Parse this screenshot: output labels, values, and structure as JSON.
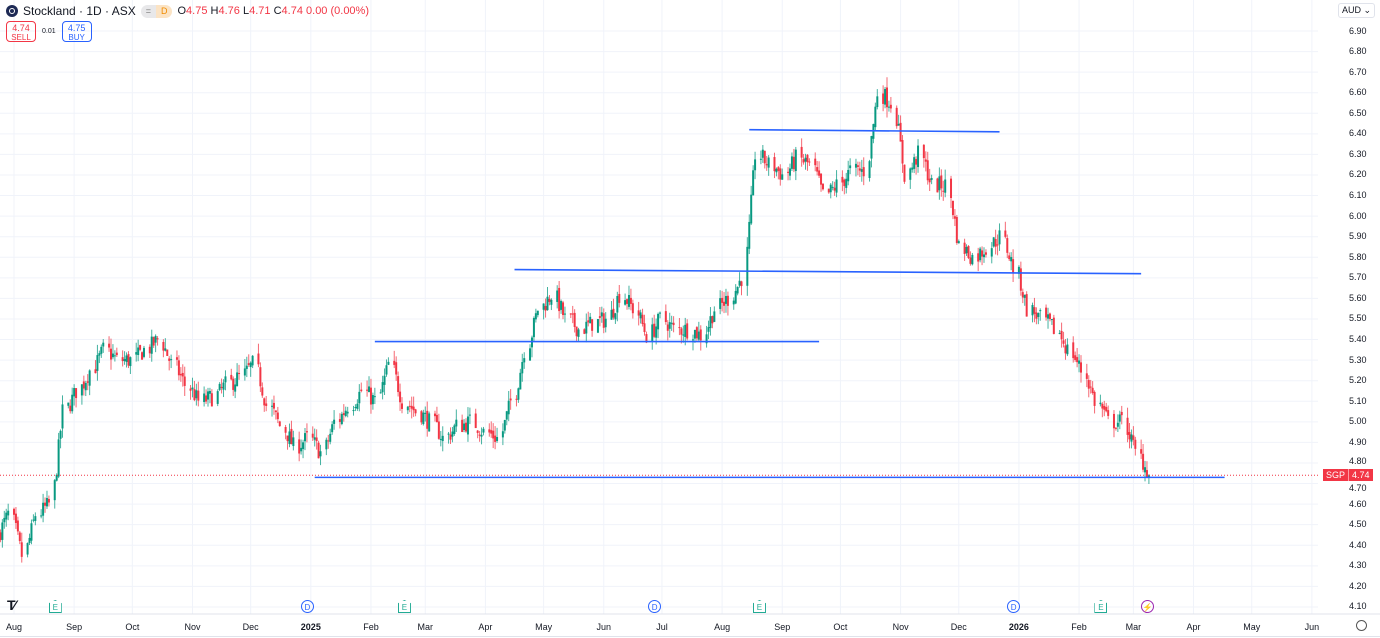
{
  "header": {
    "symbol_title": "Stockland · 1D · ASX",
    "pill_left": "=",
    "pill_right": "D",
    "o_label": "O",
    "o": "4.75",
    "h_label": "H",
    "h": "4.76",
    "l_label": "L",
    "l": "4.71",
    "c_label": "C",
    "c": "4.74",
    "change": "0.00 (0.00%)"
  },
  "trade": {
    "sell_price": "4.74",
    "sell_label": "SELL",
    "spread": "0.01",
    "buy_price": "4.75",
    "buy_label": "BUY"
  },
  "currency": "AUD ⌄",
  "last_price": {
    "symbol": "SGP",
    "value": "4.74"
  },
  "chart_data": {
    "type": "candlestick",
    "interval": "1D",
    "weekly_close_start": "2024-07-25",
    "weekly_closes": [
      4.45,
      4.55,
      4.35,
      4.55,
      4.6,
      5.05,
      5.15,
      5.25,
      5.35,
      5.3,
      5.3,
      5.35,
      5.4,
      5.28,
      5.18,
      5.1,
      5.12,
      5.18,
      5.22,
      5.28,
      5.08,
      4.98,
      4.88,
      4.92,
      4.85,
      5.0,
      5.08,
      5.15,
      5.1,
      5.28,
      5.1,
      5.05,
      5.0,
      4.92,
      4.98,
      5.0,
      4.95,
      4.92,
      5.1,
      5.35,
      5.55,
      5.62,
      5.5,
      5.45,
      5.48,
      5.5,
      5.62,
      5.55,
      5.42,
      5.5,
      5.45,
      5.45,
      5.42,
      5.55,
      5.6,
      5.7,
      6.3,
      6.25,
      6.2,
      6.28,
      6.25,
      6.1,
      6.15,
      6.22,
      6.22,
      6.6,
      6.55,
      6.2,
      6.3,
      6.15,
      6.15,
      5.85,
      5.8,
      5.85,
      5.9,
      5.75,
      5.55,
      5.5,
      5.45,
      5.35,
      5.25,
      5.1,
      5.0,
      5.0,
      4.85,
      4.74
    ],
    "y_ticks": [
      "6.90",
      "6.80",
      "6.70",
      "6.60",
      "6.50",
      "6.40",
      "6.30",
      "6.20",
      "6.10",
      "6.00",
      "5.90",
      "5.80",
      "5.70",
      "5.60",
      "5.50",
      "5.40",
      "5.30",
      "5.20",
      "5.10",
      "5.00",
      "4.90",
      "4.80",
      "4.70",
      "4.60",
      "4.50",
      "4.40",
      "4.30",
      "4.20",
      "4.10"
    ],
    "ylim": [
      4.05,
      6.95
    ],
    "x_ticks": [
      {
        "label": "Aug",
        "date": "2024-08-01"
      },
      {
        "label": "Sep",
        "date": "2024-09-01"
      },
      {
        "label": "Oct",
        "date": "2024-10-01"
      },
      {
        "label": "Nov",
        "date": "2024-11-01"
      },
      {
        "label": "Dec",
        "date": "2024-12-01"
      },
      {
        "label": "2025",
        "date": "2025-01-01",
        "bold": true
      },
      {
        "label": "Feb",
        "date": "2025-02-01"
      },
      {
        "label": "Mar",
        "date": "2025-03-01"
      },
      {
        "label": "Apr",
        "date": "2025-04-01"
      },
      {
        "label": "May",
        "date": "2025-05-01"
      },
      {
        "label": "Jun",
        "date": "2025-06-01"
      },
      {
        "label": "Jul",
        "date": "2025-07-01"
      },
      {
        "label": "Aug",
        "date": "2025-08-01"
      },
      {
        "label": "Sep",
        "date": "2025-09-01"
      },
      {
        "label": "Oct",
        "date": "2025-10-01"
      },
      {
        "label": "Nov",
        "date": "2025-11-01"
      },
      {
        "label": "Dec",
        "date": "2025-12-01"
      },
      {
        "label": "2026",
        "date": "2026-01-01",
        "bold": true
      },
      {
        "label": "Feb",
        "date": "2026-02-01"
      },
      {
        "label": "Mar",
        "date": "2026-03-01"
      },
      {
        "label": "Apr",
        "date": "2026-04-01"
      },
      {
        "label": "May",
        "date": "2026-05-01"
      },
      {
        "label": "Jun",
        "date": "2026-06-01"
      }
    ],
    "drawings": [
      {
        "type": "horizontal-segment",
        "from": "2025-01-03",
        "to": "2026-04-17",
        "price": 4.73
      },
      {
        "type": "horizontal-segment",
        "from": "2025-02-03",
        "to": "2025-09-20",
        "price": 5.39
      },
      {
        "type": "trend-line",
        "from": "2025-04-16",
        "to": "2026-03-05",
        "price_from": 5.74,
        "price_to": 5.72
      },
      {
        "type": "trend-line",
        "from": "2025-08-15",
        "to": "2025-12-22",
        "price_from": 6.42,
        "price_to": 6.41
      }
    ],
    "events": [
      {
        "type": "E",
        "date": "2024-08-22"
      },
      {
        "type": "D",
        "date": "2024-12-30"
      },
      {
        "type": "E",
        "date": "2025-02-18"
      },
      {
        "type": "D",
        "date": "2025-06-27"
      },
      {
        "type": "E",
        "date": "2025-08-20"
      },
      {
        "type": "D",
        "date": "2025-12-29"
      },
      {
        "type": "E",
        "date": "2026-02-12"
      },
      {
        "type": "L",
        "date": "2026-03-08"
      }
    ],
    "colors": {
      "up": "#089981",
      "down": "#f23645",
      "drawing": "#2962ff",
      "grid": "#f0f3fa",
      "last_price": "#f23645"
    }
  }
}
